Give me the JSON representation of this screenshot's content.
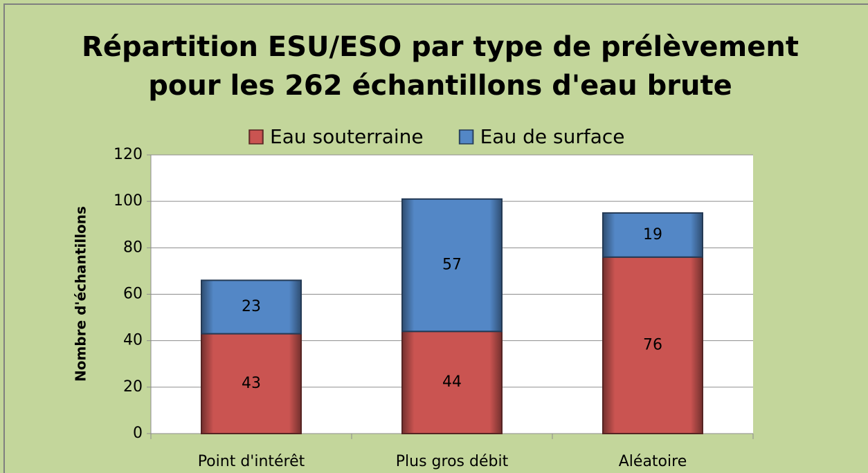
{
  "chart_data": {
    "type": "stacked_bar",
    "title": [
      "Répartition ESU/ESO par type de prélèvement",
      "pour les 262 échantillons d'eau brute"
    ],
    "y_label": "Nombre d'échantillons",
    "categories": [
      "Point d'intérêt",
      "Plus gros débit",
      "Aléatoire"
    ],
    "series": [
      {
        "name": "Eau souterraine",
        "color": "#c0504d",
        "values": [
          43,
          44,
          76
        ]
      },
      {
        "name": "Eau de surface",
        "color": "#4f81bd",
        "values": [
          23,
          57,
          19
        ]
      }
    ],
    "ylim": [
      0,
      120
    ],
    "yticks": [
      0,
      20,
      40,
      60,
      80,
      100,
      120
    ],
    "grid": true,
    "legend": "top"
  }
}
